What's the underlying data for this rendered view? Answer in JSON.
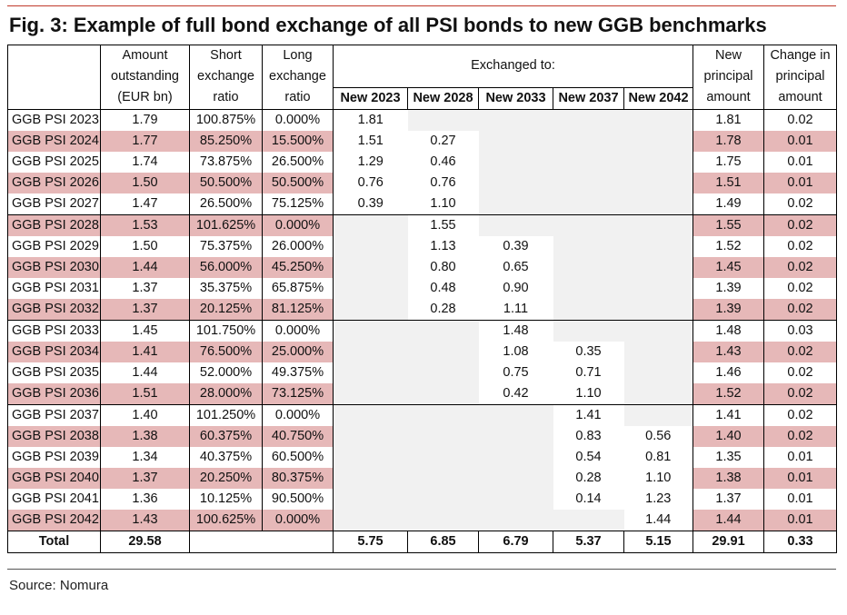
{
  "title": "Fig. 3: Example of full bond exchange of all PSI bonds to new GGB benchmarks",
  "header": {
    "amount": [
      "Amount",
      "outstanding",
      "(EUR bn)"
    ],
    "short": [
      "Short",
      "exchange",
      "ratio"
    ],
    "long": [
      "Long",
      "exchange",
      "ratio"
    ],
    "exchanged_to": "Exchanged to:",
    "new_principal": [
      "New",
      "principal",
      "amount"
    ],
    "change": [
      "Change in",
      "principal",
      "amount"
    ],
    "benchmarks": [
      "New 2023",
      "New 2028",
      "New 2033",
      "New 2037",
      "New 2042"
    ]
  },
  "rows": [
    {
      "name": "GGB PSI 2023",
      "amount": "1.79",
      "short": "100.875%",
      "long": "0.000%",
      "ex": [
        "1.81",
        "",
        "",
        "",
        ""
      ],
      "newp": "1.81",
      "chg": "0.02"
    },
    {
      "name": "GGB PSI 2024",
      "amount": "1.77",
      "short": "85.250%",
      "long": "15.500%",
      "ex": [
        "1.51",
        "0.27",
        "",
        "",
        ""
      ],
      "newp": "1.78",
      "chg": "0.01"
    },
    {
      "name": "GGB PSI 2025",
      "amount": "1.74",
      "short": "73.875%",
      "long": "26.500%",
      "ex": [
        "1.29",
        "0.46",
        "",
        "",
        ""
      ],
      "newp": "1.75",
      "chg": "0.01"
    },
    {
      "name": "GGB PSI 2026",
      "amount": "1.50",
      "short": "50.500%",
      "long": "50.500%",
      "ex": [
        "0.76",
        "0.76",
        "",
        "",
        ""
      ],
      "newp": "1.51",
      "chg": "0.01"
    },
    {
      "name": "GGB PSI 2027",
      "amount": "1.47",
      "short": "26.500%",
      "long": "75.125%",
      "ex": [
        "0.39",
        "1.10",
        "",
        "",
        ""
      ],
      "newp": "1.49",
      "chg": "0.02"
    },
    {
      "name": "GGB PSI 2028",
      "amount": "1.53",
      "short": "101.625%",
      "long": "0.000%",
      "ex": [
        "",
        "1.55",
        "",
        "",
        ""
      ],
      "newp": "1.55",
      "chg": "0.02"
    },
    {
      "name": "GGB PSI 2029",
      "amount": "1.50",
      "short": "75.375%",
      "long": "26.000%",
      "ex": [
        "",
        "1.13",
        "0.39",
        "",
        ""
      ],
      "newp": "1.52",
      "chg": "0.02"
    },
    {
      "name": "GGB PSI 2030",
      "amount": "1.44",
      "short": "56.000%",
      "long": "45.250%",
      "ex": [
        "",
        "0.80",
        "0.65",
        "",
        ""
      ],
      "newp": "1.45",
      "chg": "0.02"
    },
    {
      "name": "GGB PSI 2031",
      "amount": "1.37",
      "short": "35.375%",
      "long": "65.875%",
      "ex": [
        "",
        "0.48",
        "0.90",
        "",
        ""
      ],
      "newp": "1.39",
      "chg": "0.02"
    },
    {
      "name": "GGB PSI 2032",
      "amount": "1.37",
      "short": "20.125%",
      "long": "81.125%",
      "ex": [
        "",
        "0.28",
        "1.11",
        "",
        ""
      ],
      "newp": "1.39",
      "chg": "0.02"
    },
    {
      "name": "GGB PSI 2033",
      "amount": "1.45",
      "short": "101.750%",
      "long": "0.000%",
      "ex": [
        "",
        "",
        "1.48",
        "",
        ""
      ],
      "newp": "1.48",
      "chg": "0.03"
    },
    {
      "name": "GGB PSI 2034",
      "amount": "1.41",
      "short": "76.500%",
      "long": "25.000%",
      "ex": [
        "",
        "",
        "1.08",
        "0.35",
        ""
      ],
      "newp": "1.43",
      "chg": "0.02"
    },
    {
      "name": "GGB PSI 2035",
      "amount": "1.44",
      "short": "52.000%",
      "long": "49.375%",
      "ex": [
        "",
        "",
        "0.75",
        "0.71",
        ""
      ],
      "newp": "1.46",
      "chg": "0.02"
    },
    {
      "name": "GGB PSI 2036",
      "amount": "1.51",
      "short": "28.000%",
      "long": "73.125%",
      "ex": [
        "",
        "",
        "0.42",
        "1.10",
        ""
      ],
      "newp": "1.52",
      "chg": "0.02"
    },
    {
      "name": "GGB PSI 2037",
      "amount": "1.40",
      "short": "101.250%",
      "long": "0.000%",
      "ex": [
        "",
        "",
        "",
        "1.41",
        ""
      ],
      "newp": "1.41",
      "chg": "0.02"
    },
    {
      "name": "GGB PSI 2038",
      "amount": "1.38",
      "short": "60.375%",
      "long": "40.750%",
      "ex": [
        "",
        "",
        "",
        "0.83",
        "0.56"
      ],
      "newp": "1.40",
      "chg": "0.02"
    },
    {
      "name": "GGB PSI 2039",
      "amount": "1.34",
      "short": "40.375%",
      "long": "60.500%",
      "ex": [
        "",
        "",
        "",
        "0.54",
        "0.81"
      ],
      "newp": "1.35",
      "chg": "0.01"
    },
    {
      "name": "GGB PSI 2040",
      "amount": "1.37",
      "short": "20.250%",
      "long": "80.375%",
      "ex": [
        "",
        "",
        "",
        "0.28",
        "1.10"
      ],
      "newp": "1.38",
      "chg": "0.01"
    },
    {
      "name": "GGB PSI 2041",
      "amount": "1.36",
      "short": "10.125%",
      "long": "90.500%",
      "ex": [
        "",
        "",
        "",
        "0.14",
        "1.23"
      ],
      "newp": "1.37",
      "chg": "0.01"
    },
    {
      "name": "GGB PSI 2042",
      "amount": "1.43",
      "short": "100.625%",
      "long": "0.000%",
      "ex": [
        "",
        "",
        "",
        "",
        "1.44"
      ],
      "newp": "1.44",
      "chg": "0.01"
    }
  ],
  "total": {
    "label": "Total",
    "amount": "29.58",
    "ex": [
      "5.75",
      "6.85",
      "6.79",
      "5.37",
      "5.15"
    ],
    "newp": "29.91",
    "chg": "0.33"
  },
  "source": "Source: Nomura",
  "colors": {
    "accent": "#c0392b",
    "highlight": "#e6b8b8",
    "grey": "#f1f1f1"
  }
}
